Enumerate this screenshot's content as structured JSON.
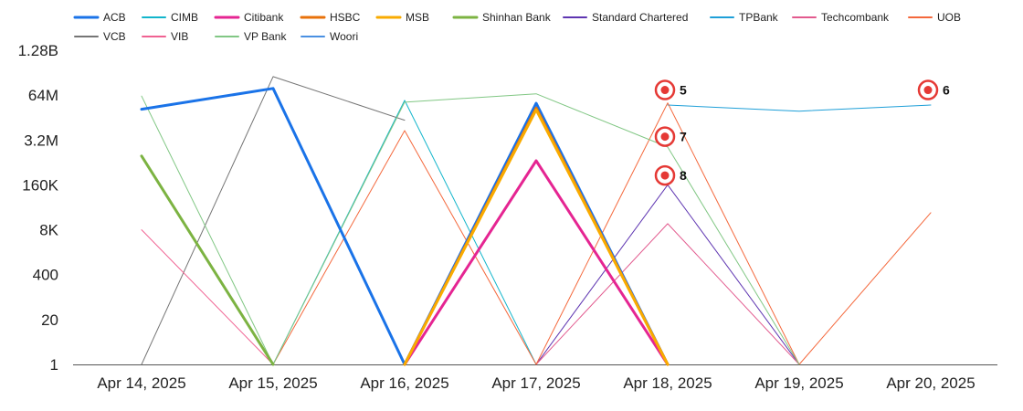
{
  "chart_data": {
    "type": "line",
    "title": "",
    "xlabel": "",
    "ylabel": "",
    "y_scale": "log",
    "yticks": [
      "1",
      "20",
      "400",
      "8K",
      "160K",
      "3.2M",
      "64M",
      "1.28B"
    ],
    "ylim": [
      1,
      1280000000
    ],
    "categories": [
      "Apr 14, 2025",
      "Apr 15, 2025",
      "Apr 16, 2025",
      "Apr 17, 2025",
      "Apr 18, 2025",
      "Apr 19, 2025",
      "Apr 20, 2025"
    ],
    "legend_position": "top",
    "series": [
      {
        "name": "ACB",
        "color": "#1a73e8",
        "width": 3,
        "values": [
          25000000,
          100000000,
          1,
          37000000,
          1,
          null,
          null
        ]
      },
      {
        "name": "CIMB",
        "color": "#12b5cb",
        "width": 1,
        "values": [
          null,
          1,
          45000000,
          1,
          null,
          null,
          null
        ]
      },
      {
        "name": "Citibank",
        "color": "#e52592",
        "width": 3,
        "values": [
          null,
          null,
          1,
          800000,
          1,
          null,
          null
        ]
      },
      {
        "name": "HSBC",
        "color": "#e8710a",
        "width": 3,
        "values": [
          null,
          null,
          1,
          27000000,
          1,
          null,
          null
        ]
      },
      {
        "name": "MSB",
        "color": "#f9ab00",
        "width": 3,
        "values": [
          null,
          null,
          1,
          24000000,
          1,
          null,
          null
        ]
      },
      {
        "name": "Shinhan Bank",
        "color": "#7cb342",
        "width": 3,
        "values": [
          1100000,
          1,
          null,
          null,
          null,
          null,
          null
        ]
      },
      {
        "name": "Standard Chartered",
        "color": "#5e35b1",
        "width": 1,
        "values": [
          null,
          null,
          null,
          1,
          160000,
          1,
          null
        ]
      },
      {
        "name": "TPBank",
        "color": "#1e9fd8",
        "width": 1,
        "values": [
          null,
          null,
          null,
          null,
          33000000,
          22000000,
          33000000
        ]
      },
      {
        "name": "Techcombank",
        "color": "#e25a8e",
        "width": 1,
        "values": [
          null,
          null,
          null,
          1,
          12000,
          1,
          null
        ]
      },
      {
        "name": "UOB",
        "color": "#f4683c",
        "width": 1,
        "values": [
          null,
          1,
          6000000,
          1,
          38000000,
          1,
          25000
        ]
      },
      {
        "name": "VCB",
        "color": "#757575",
        "width": 1,
        "values": [
          1,
          220000000,
          12000000,
          null,
          null,
          null,
          null
        ]
      },
      {
        "name": "VIB",
        "color": "#f06292",
        "width": 1,
        "values": [
          8000,
          1,
          null,
          null,
          null,
          null,
          null
        ]
      },
      {
        "name": "VP Bank",
        "color": "#81c784",
        "width": 1,
        "values": [
          60000000,
          1,
          40000000,
          70000000,
          2000000,
          1,
          null
        ]
      },
      {
        "name": "Woori",
        "color": "#4a90e2",
        "width": 1,
        "values": [
          null,
          null,
          null,
          null,
          null,
          null,
          null
        ]
      }
    ],
    "annotations": [
      {
        "label": "5",
        "x": "Apr 18, 2025",
        "y": 90000000
      },
      {
        "label": "6",
        "x": "Apr 20, 2025",
        "y": 90000000
      },
      {
        "label": "7",
        "x": "Apr 18, 2025",
        "y": 4000000
      },
      {
        "label": "8",
        "x": "Apr 18, 2025",
        "y": 300000
      }
    ]
  }
}
